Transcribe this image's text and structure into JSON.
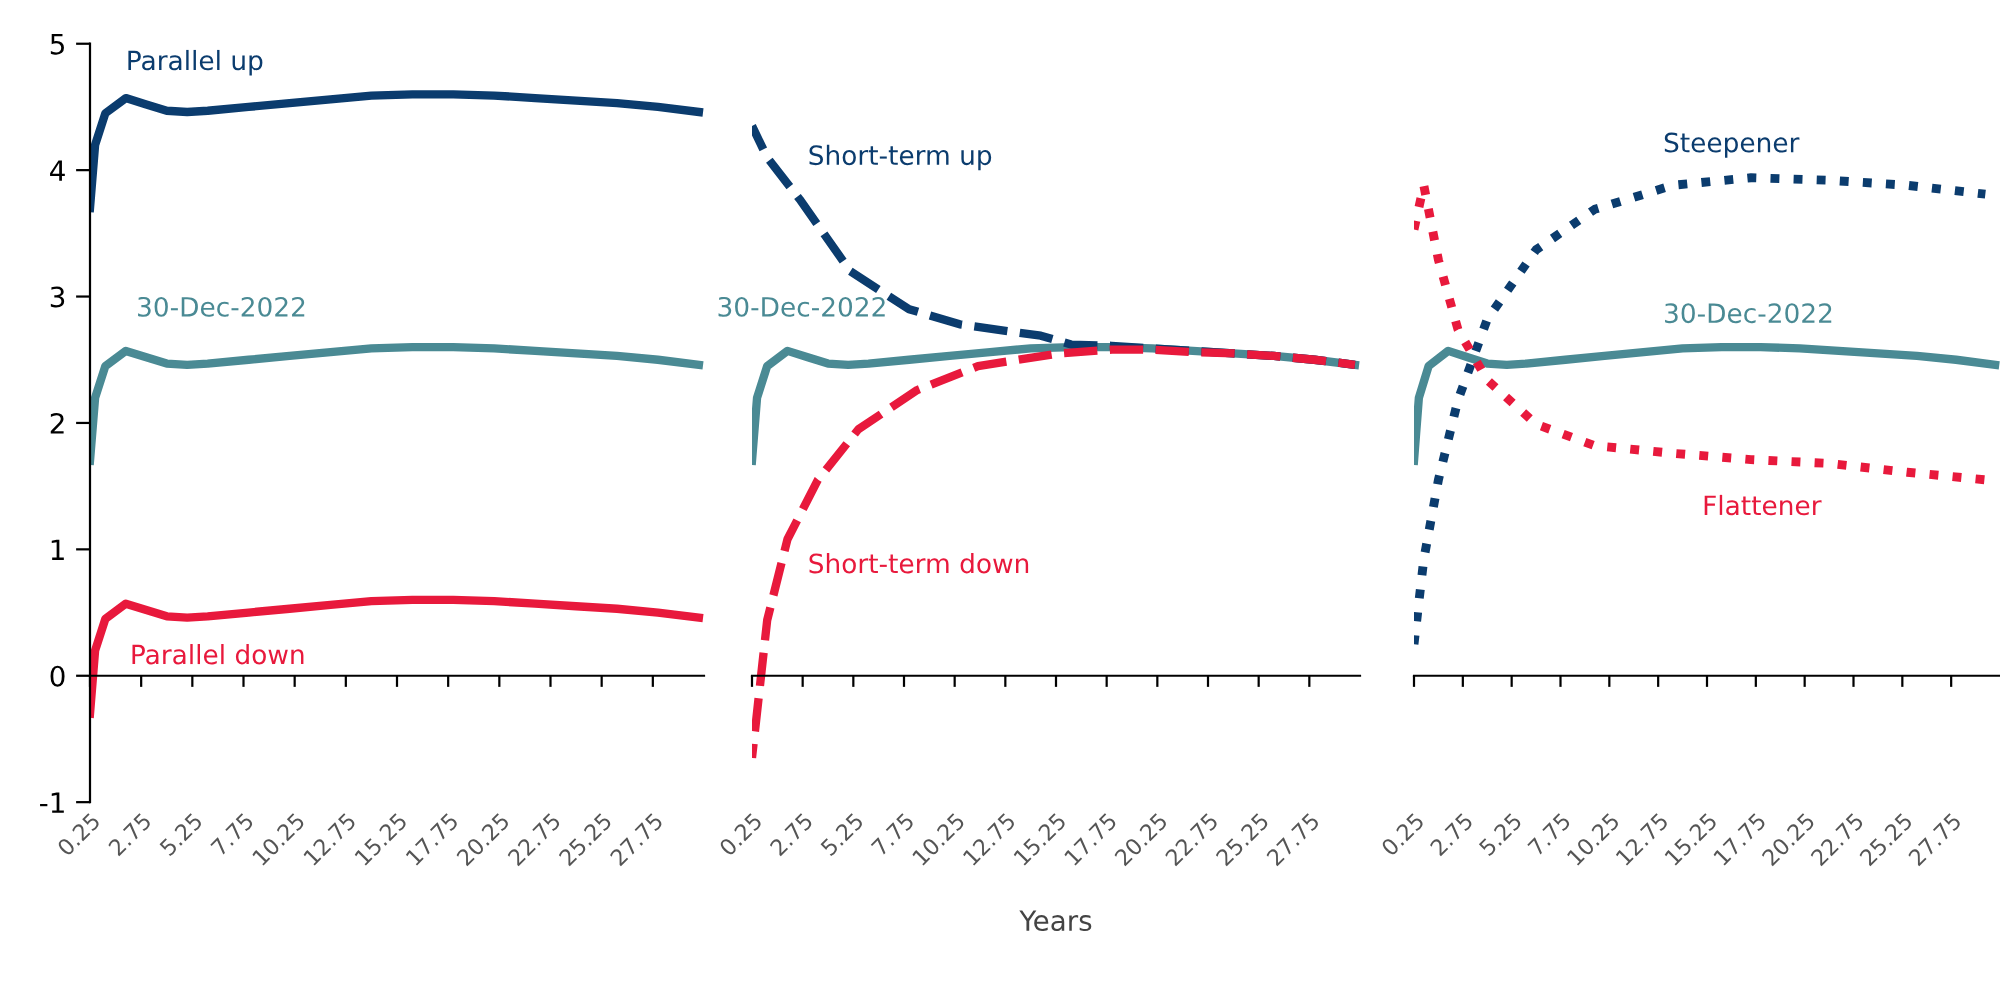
{
  "chart_data": [
    {
      "type": "line",
      "ylim": [
        -1,
        5
      ],
      "yticks": [
        -1,
        0,
        1,
        2,
        3,
        4,
        5
      ],
      "xlim": [
        0.25,
        30.25
      ],
      "xticks": [
        0.25,
        2.75,
        5.25,
        7.75,
        10.25,
        12.75,
        15.25,
        17.75,
        20.25,
        22.75,
        25.25,
        27.75
      ],
      "legend": false,
      "series": [
        {
          "name": "Parallel up",
          "color": "#0b3c6e",
          "line_style": "solid",
          "x": [
            0.25,
            0.5,
            1,
            2,
            3,
            4,
            5,
            6,
            8,
            10,
            12,
            14,
            16,
            18,
            20,
            22,
            24,
            26,
            28,
            30
          ],
          "values": [
            3.7,
            4.2,
            4.45,
            4.57,
            4.52,
            4.47,
            4.46,
            4.47,
            4.5,
            4.53,
            4.56,
            4.59,
            4.6,
            4.6,
            4.59,
            4.57,
            4.55,
            4.53,
            4.5,
            4.46
          ]
        },
        {
          "name": "30-Dec-2022",
          "color": "#4a8a94",
          "line_style": "solid",
          "x": [
            0.25,
            0.5,
            1,
            2,
            3,
            4,
            5,
            6,
            8,
            10,
            12,
            14,
            16,
            18,
            20,
            22,
            24,
            26,
            28,
            30
          ],
          "values": [
            1.7,
            2.2,
            2.45,
            2.57,
            2.52,
            2.47,
            2.46,
            2.47,
            2.5,
            2.53,
            2.56,
            2.59,
            2.6,
            2.6,
            2.59,
            2.57,
            2.55,
            2.53,
            2.5,
            2.46
          ]
        },
        {
          "name": "Parallel down",
          "color": "#e8193c",
          "line_style": "solid",
          "x": [
            0.25,
            0.5,
            1,
            2,
            3,
            4,
            5,
            6,
            8,
            10,
            12,
            14,
            16,
            18,
            20,
            22,
            24,
            26,
            28,
            30
          ],
          "values": [
            -0.3,
            0.2,
            0.45,
            0.57,
            0.52,
            0.47,
            0.46,
            0.47,
            0.5,
            0.53,
            0.56,
            0.59,
            0.6,
            0.6,
            0.59,
            0.57,
            0.55,
            0.53,
            0.5,
            0.46
          ]
        }
      ]
    },
    {
      "type": "line",
      "ylim": [
        -1,
        5
      ],
      "xlim": [
        0.25,
        30.25
      ],
      "xticks": [
        0.25,
        2.75,
        5.25,
        7.75,
        10.25,
        12.75,
        15.25,
        17.75,
        20.25,
        22.75,
        25.25,
        27.75
      ],
      "tick_labels": "x",
      "legend": false,
      "xlabel": "Years",
      "series": [
        {
          "name": "30-Dec-2022",
          "color": "#4a8a94",
          "line_style": "solid",
          "x": [
            0.25,
            0.5,
            1,
            2,
            3,
            4,
            5,
            6,
            8,
            10,
            12,
            14,
            16,
            18,
            20,
            22,
            24,
            26,
            28,
            30
          ],
          "values": [
            1.7,
            2.2,
            2.45,
            2.57,
            2.52,
            2.47,
            2.46,
            2.47,
            2.5,
            2.53,
            2.56,
            2.59,
            2.6,
            2.6,
            2.59,
            2.57,
            2.55,
            2.53,
            2.5,
            2.46
          ]
        },
        {
          "name": "Short-term up",
          "color": "#0b3c6e",
          "line_style": "dashed",
          "x": [
            0.25,
            1,
            2.6,
            5.1,
            8,
            10.5,
            14.5,
            16,
            18,
            20,
            22,
            24,
            26,
            28,
            30
          ],
          "values": [
            4.35,
            4.1,
            3.77,
            3.2,
            2.9,
            2.78,
            2.69,
            2.62,
            2.61,
            2.59,
            2.57,
            2.55,
            2.53,
            2.5,
            2.46
          ]
        },
        {
          "name": "Short-term down",
          "color": "#e8193c",
          "line_style": "dashed",
          "x": [
            0.25,
            1,
            2,
            3.5,
            5.5,
            8.4,
            11.4,
            15.4,
            18,
            20,
            22,
            24,
            26,
            28,
            30
          ],
          "values": [
            -0.65,
            0.44,
            1.08,
            1.55,
            1.95,
            2.26,
            2.45,
            2.55,
            2.58,
            2.58,
            2.56,
            2.55,
            2.53,
            2.5,
            2.46
          ]
        }
      ]
    },
    {
      "type": "line",
      "ylim": [
        -1,
        5
      ],
      "xlim": [
        0.25,
        30.25
      ],
      "xticks": [
        0.25,
        2.75,
        5.25,
        7.75,
        10.25,
        12.75,
        15.25,
        17.75,
        20.25,
        22.75,
        25.25,
        27.75
      ],
      "tick_labels": "x",
      "legend": false,
      "series": [
        {
          "name": "Steepener",
          "color": "#0b3c6e",
          "line_style": "dotted",
          "x": [
            0.25,
            0.75,
            1.5,
            2.5,
            4,
            6.5,
            9.5,
            13.5,
            17.5,
            21.5,
            25.5,
            29.5
          ],
          "values": [
            0.25,
            0.92,
            1.55,
            2.18,
            2.82,
            3.37,
            3.69,
            3.88,
            3.94,
            3.92,
            3.88,
            3.81
          ]
        },
        {
          "name": "30-Dec-2022",
          "color": "#4a8a94",
          "line_style": "solid",
          "x": [
            0.25,
            0.5,
            1,
            2,
            3,
            4,
            5,
            6,
            8,
            10,
            12,
            14,
            16,
            18,
            20,
            22,
            24,
            26,
            28,
            30
          ],
          "values": [
            1.7,
            2.2,
            2.45,
            2.57,
            2.52,
            2.47,
            2.46,
            2.47,
            2.5,
            2.53,
            2.56,
            2.59,
            2.6,
            2.6,
            2.59,
            2.57,
            2.55,
            2.53,
            2.5,
            2.46
          ]
        },
        {
          "name": "Flattener",
          "color": "#e8193c",
          "line_style": "dotted",
          "x": [
            0.25,
            0.75,
            1.5,
            2.5,
            4,
            6.5,
            9.5,
            13.5,
            17.5,
            21.5,
            25.5,
            29.5
          ],
          "values": [
            3.53,
            3.88,
            3.29,
            2.74,
            2.34,
            1.99,
            1.82,
            1.76,
            1.71,
            1.68,
            1.61,
            1.55
          ]
        }
      ]
    }
  ]
}
